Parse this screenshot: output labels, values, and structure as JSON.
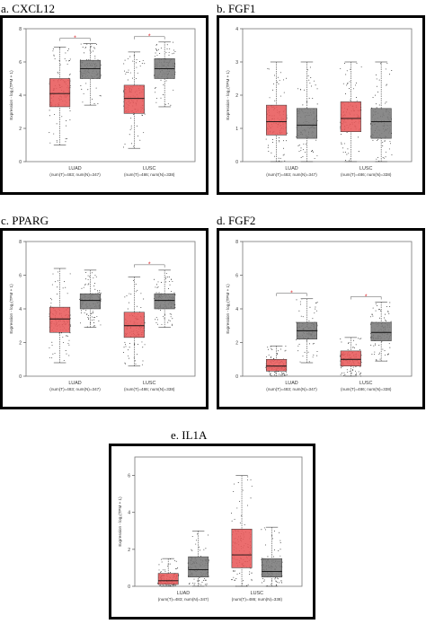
{
  "panels": [
    {
      "label": "a. CXCL12"
    },
    {
      "label": "b. FGF1"
    },
    {
      "label": "c. PPARG"
    },
    {
      "label": "d. FGF2"
    },
    {
      "label": "e. IL1A"
    }
  ],
  "colors": {
    "tumor": "#e8595a",
    "normal": "#7a7a7a",
    "signif": "#e0262b",
    "frame": "#000000"
  },
  "chart_data": [
    {
      "type": "box",
      "ylabel": "Expression - log₂(TPM + 1)",
      "ylim": [
        0,
        8
      ],
      "yticks": [
        0,
        2,
        4,
        6,
        8
      ],
      "categories": [
        "LUAD",
        "LUSC"
      ],
      "category_counts": [
        "(num(T)=483; num(N)=347)",
        "(num(T)=486; num(N)=338)"
      ],
      "series": [
        {
          "group": "T",
          "boxes": [
            {
              "q1": 3.3,
              "median": 4.1,
              "q3": 5.0,
              "wmin": 1.0,
              "wmax": 6.9
            },
            {
              "q1": 2.9,
              "median": 3.8,
              "q3": 4.6,
              "wmin": 0.8,
              "wmax": 6.6
            }
          ]
        },
        {
          "group": "N",
          "boxes": [
            {
              "q1": 5.0,
              "median": 5.6,
              "q3": 6.1,
              "wmin": 3.4,
              "wmax": 7.1
            },
            {
              "q1": 5.0,
              "median": 5.6,
              "q3": 6.2,
              "wmin": 3.3,
              "wmax": 7.2
            }
          ]
        }
      ],
      "significance": [
        true,
        true
      ]
    },
    {
      "type": "box",
      "ylabel": "Expression - log₂(TPM + 1)",
      "ylim": [
        0,
        4
      ],
      "yticks": [
        0,
        1,
        2,
        3,
        4
      ],
      "categories": [
        "LUAD",
        "LUSC"
      ],
      "category_counts": [
        "(num(T)=483; num(N)=347)",
        "(num(T)=486; num(N)=338)"
      ],
      "series": [
        {
          "group": "T",
          "boxes": [
            {
              "q1": 0.8,
              "median": 1.2,
              "q3": 1.7,
              "wmin": 0.0,
              "wmax": 3.0
            },
            {
              "q1": 0.9,
              "median": 1.3,
              "q3": 1.8,
              "wmin": 0.0,
              "wmax": 3.0
            }
          ]
        },
        {
          "group": "N",
          "boxes": [
            {
              "q1": 0.7,
              "median": 1.1,
              "q3": 1.6,
              "wmin": 0.0,
              "wmax": 3.0
            },
            {
              "q1": 0.7,
              "median": 1.2,
              "q3": 1.6,
              "wmin": 0.0,
              "wmax": 3.0
            }
          ]
        }
      ],
      "significance": [
        false,
        false
      ]
    },
    {
      "type": "box",
      "ylabel": "Expression - log₂(TPM + 1)",
      "ylim": [
        0,
        8
      ],
      "yticks": [
        0,
        2,
        4,
        6,
        8
      ],
      "categories": [
        "LUAD",
        "LUSC"
      ],
      "category_counts": [
        "(num(T)=483; num(N)=347)",
        "(num(T)=486; num(N)=338)"
      ],
      "series": [
        {
          "group": "T",
          "boxes": [
            {
              "q1": 2.6,
              "median": 3.4,
              "q3": 4.1,
              "wmin": 0.8,
              "wmax": 6.4
            },
            {
              "q1": 2.3,
              "median": 3.0,
              "q3": 3.8,
              "wmin": 0.6,
              "wmax": 5.9
            }
          ]
        },
        {
          "group": "N",
          "boxes": [
            {
              "q1": 4.0,
              "median": 4.5,
              "q3": 4.9,
              "wmin": 2.9,
              "wmax": 6.3
            },
            {
              "q1": 4.0,
              "median": 4.5,
              "q3": 4.9,
              "wmin": 2.9,
              "wmax": 6.3
            }
          ]
        }
      ],
      "significance": [
        false,
        true
      ]
    },
    {
      "type": "box",
      "ylabel": "Expression - log₂(TPM + 1)",
      "ylim": [
        0,
        8
      ],
      "yticks": [
        0,
        2,
        4,
        6,
        8
      ],
      "categories": [
        "LUAD",
        "LUSC"
      ],
      "category_counts": [
        "(num(T)=483; num(N)=347)",
        "(num(T)=486; num(N)=338)"
      ],
      "series": [
        {
          "group": "T",
          "boxes": [
            {
              "q1": 0.3,
              "median": 0.6,
              "q3": 1.0,
              "wmin": 0.0,
              "wmax": 1.8
            },
            {
              "q1": 0.6,
              "median": 1.0,
              "q3": 1.5,
              "wmin": 0.0,
              "wmax": 2.3
            }
          ]
        },
        {
          "group": "N",
          "boxes": [
            {
              "q1": 2.2,
              "median": 2.7,
              "q3": 3.2,
              "wmin": 0.8,
              "wmax": 4.6
            },
            {
              "q1": 2.1,
              "median": 2.6,
              "q3": 3.2,
              "wmin": 0.9,
              "wmax": 4.4
            }
          ]
        }
      ],
      "significance": [
        true,
        true
      ]
    },
    {
      "type": "box",
      "ylabel": "Expression - log₂(TPM + 1)",
      "ylim": [
        0,
        7
      ],
      "yticks": [
        0,
        2,
        4,
        6
      ],
      "categories": [
        "LUAD",
        "LUSC"
      ],
      "category_counts": [
        "(num(T)=483; num(N)=347)",
        "(num(T)=486; num(N)=338)"
      ],
      "series": [
        {
          "group": "T",
          "boxes": [
            {
              "q1": 0.1,
              "median": 0.3,
              "q3": 0.7,
              "wmin": 0.0,
              "wmax": 1.5
            },
            {
              "q1": 1.0,
              "median": 1.7,
              "q3": 3.1,
              "wmin": 0.0,
              "wmax": 6.0
            }
          ]
        },
        {
          "group": "N",
          "boxes": [
            {
              "q1": 0.5,
              "median": 0.9,
              "q3": 1.6,
              "wmin": 0.0,
              "wmax": 3.0
            },
            {
              "q1": 0.5,
              "median": 0.8,
              "q3": 1.5,
              "wmin": 0.0,
              "wmax": 3.2
            }
          ]
        }
      ],
      "significance": [
        false,
        false
      ]
    }
  ]
}
